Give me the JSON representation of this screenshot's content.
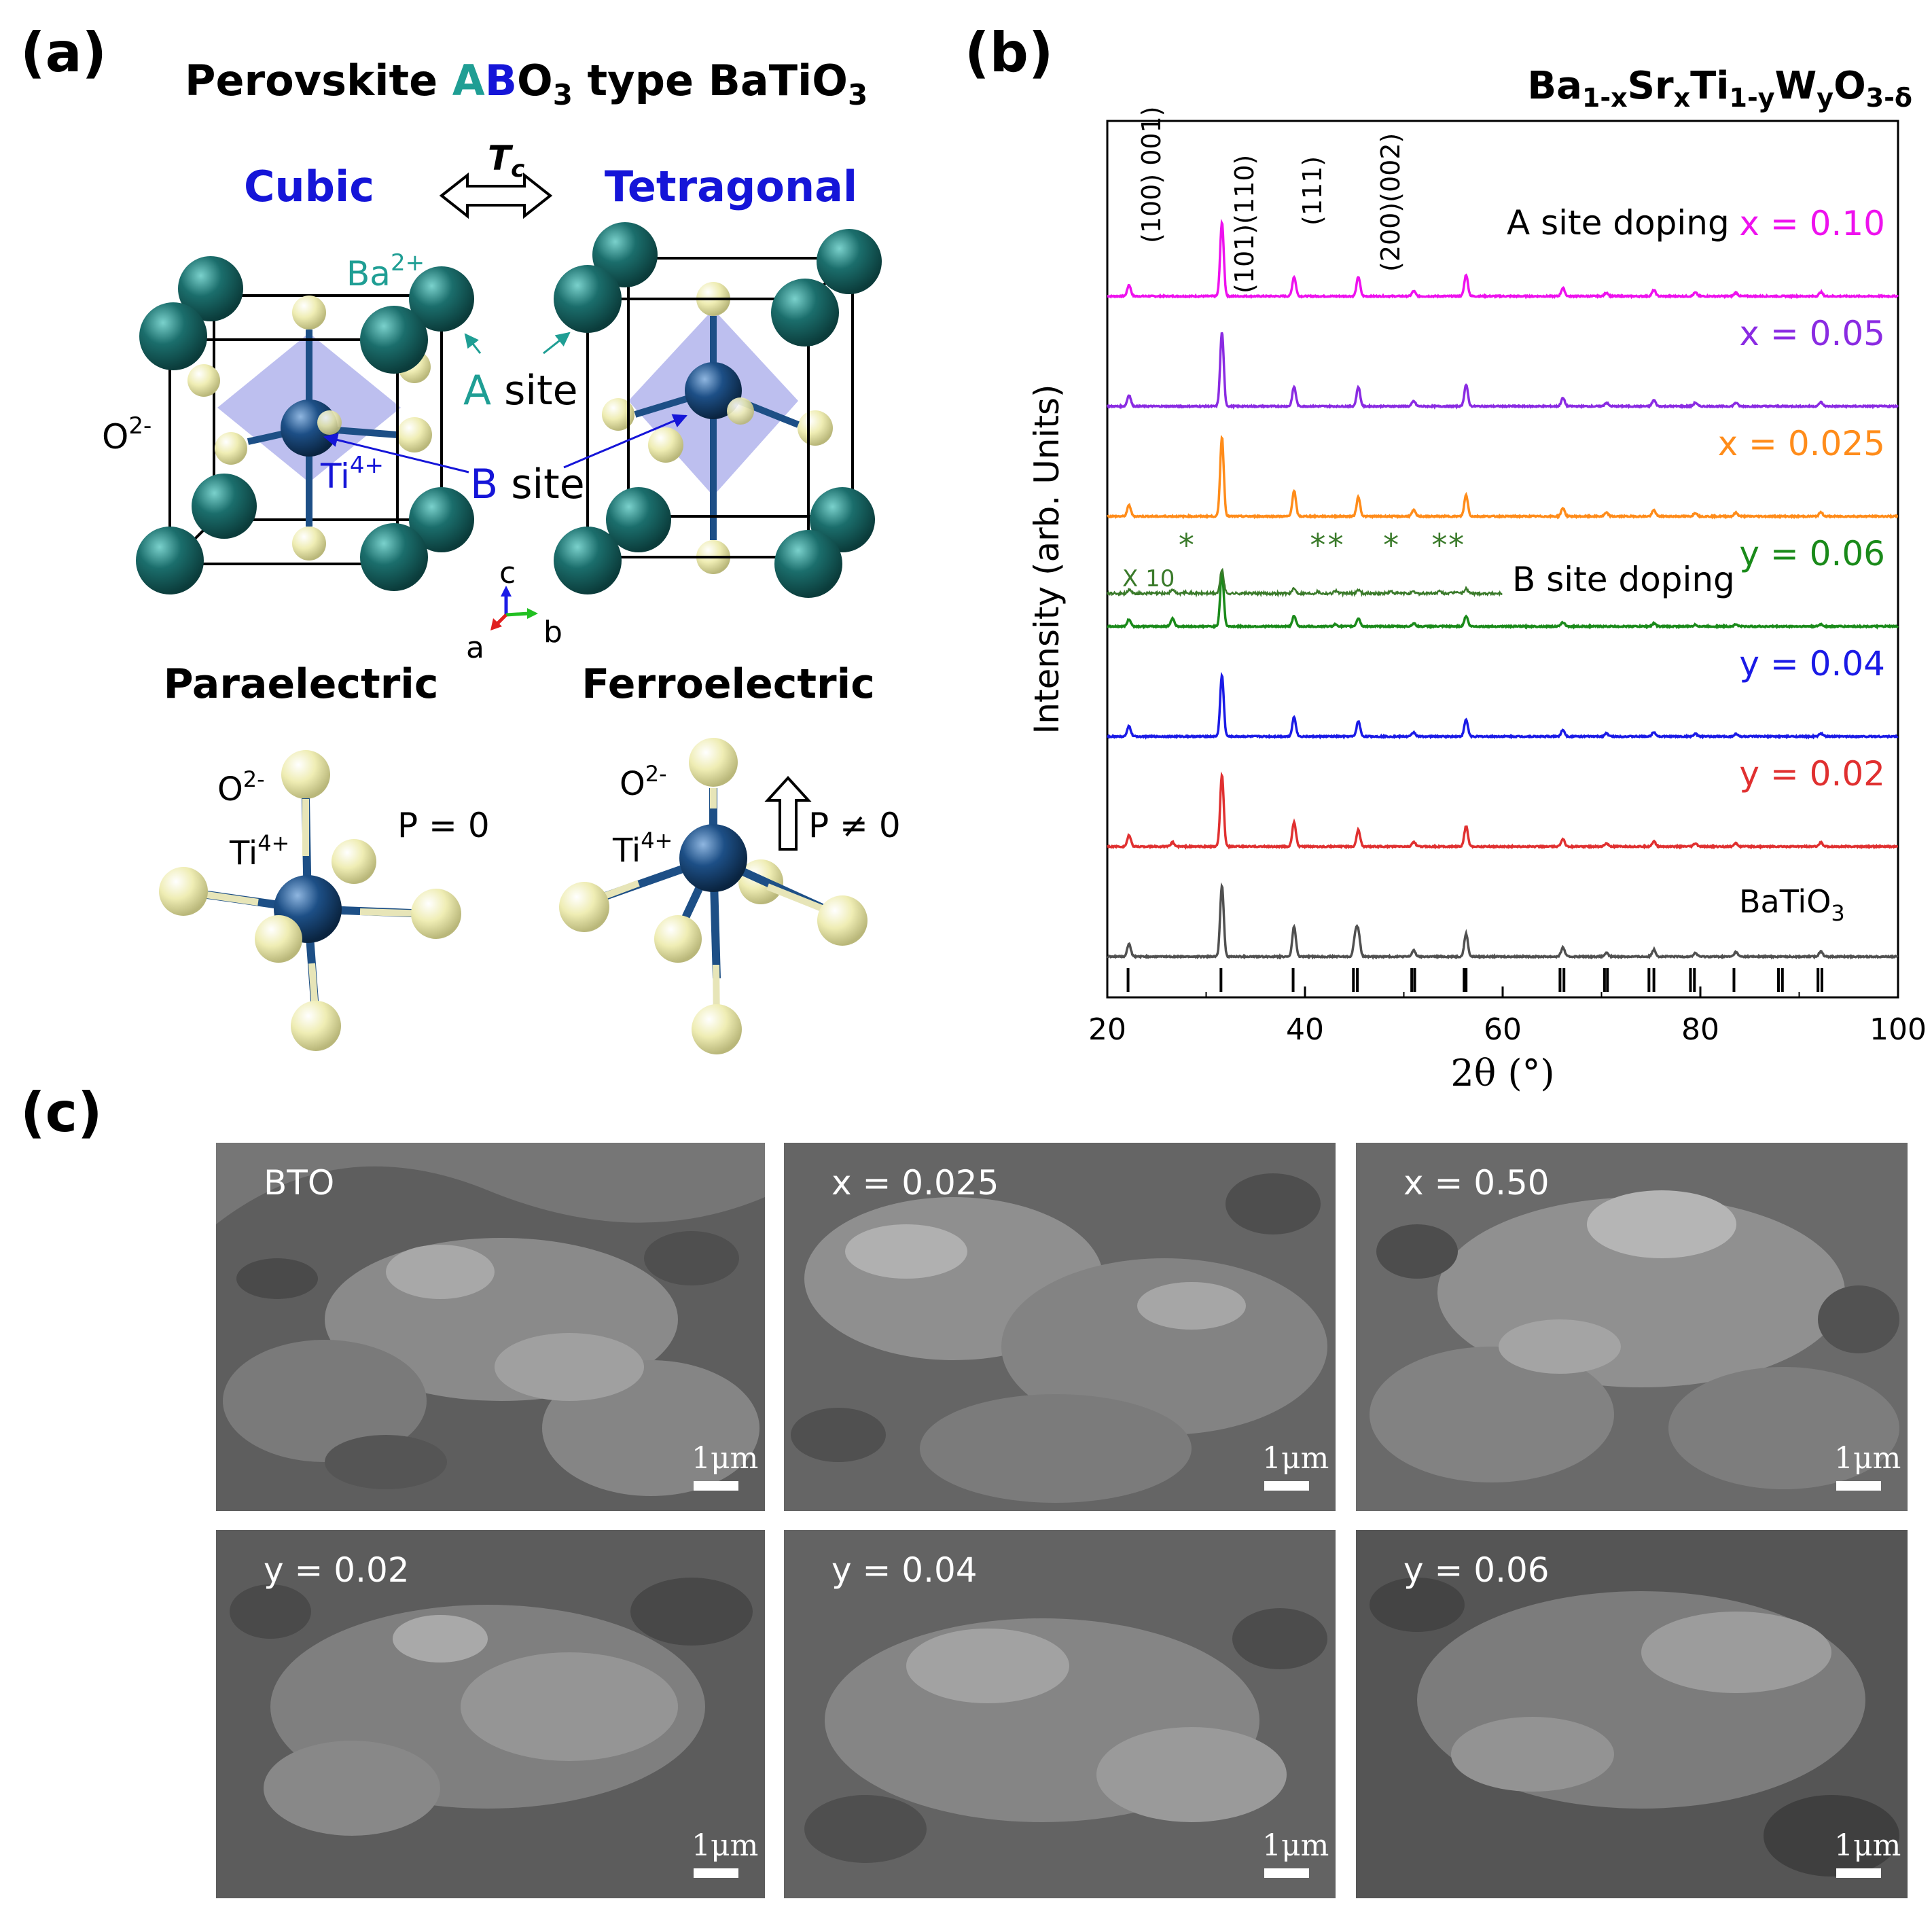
{
  "panel_a": {
    "label": "(a)",
    "title_prefix": "Perovskite ",
    "title_A": "A",
    "title_B": "B",
    "title_O": "O",
    "title_O_sub": "3",
    "title_suffix": " type BaTiO",
    "title_suffix_sub": "3",
    "phase_left": "Cubic",
    "phase_right": "Tetragonal",
    "transition_T": "T",
    "transition_T_sub": "c",
    "ion_ba": "Ba",
    "ion_ba_sup": "2+",
    "ion_o": "O",
    "ion_o_sup": "2-",
    "ion_ti": "Ti",
    "ion_ti_sup": "4+",
    "a_site_letter": "A",
    "a_site_word": " site",
    "b_site_letter": "B",
    "b_site_word": " site",
    "axis_c": "c",
    "axis_a": "a",
    "axis_b": "b",
    "state_left": "Paraelectric",
    "state_right": "Ferroelectric",
    "polarization_left": "P = 0",
    "polarization_right": "P ≠ 0",
    "colors": {
      "teal": "#1f9e94",
      "blue": "#1515d8",
      "ba_sphere": "#1b6e6c",
      "ti_sphere": "#1d4f86",
      "o_sphere": "#efedb4",
      "octahedron": "#a7a9ea"
    }
  },
  "panel_b": {
    "label": "(b)",
    "formula": {
      "base1": "Ba",
      "sub1": "1-x",
      "base2": "Sr",
      "sub2": "x",
      "base3": "Ti",
      "sub3": "1-y",
      "base4": "W",
      "sub4": "y",
      "base5": "O",
      "sub5": "3-δ"
    },
    "peak_labels": [
      "(100) 001)",
      "(101)(110)",
      "(111)",
      "(200)(002)"
    ],
    "a_site_text": "A site doping",
    "b_site_text": "B site doping",
    "x10_label": "X 10",
    "impurity_marker": "*",
    "batio3_label_base": "BaTiO",
    "batio3_label_sub": "3"
  },
  "chart_data": {
    "type": "line",
    "xlabel": "2θ (°)",
    "ylabel": "Intensity (arb. Units)",
    "xlim": [
      20,
      100
    ],
    "xticks": [
      20,
      40,
      60,
      80,
      100
    ],
    "yticks": [],
    "series": [
      {
        "name": "x = 0.10",
        "color": "#ee11ee",
        "offset": 6,
        "peaks": [
          [
            22.2,
            0.22
          ],
          [
            31.6,
            1.45
          ],
          [
            38.9,
            0.38
          ],
          [
            45.4,
            0.38
          ],
          [
            51.0,
            0.1
          ],
          [
            56.3,
            0.42
          ],
          [
            66.1,
            0.16
          ],
          [
            70.5,
            0.07
          ],
          [
            75.3,
            0.12
          ],
          [
            79.5,
            0.07
          ],
          [
            83.6,
            0.07
          ],
          [
            92.2,
            0.08
          ]
        ]
      },
      {
        "name": "x = 0.05",
        "color": "#8a2be2",
        "offset": 5,
        "peaks": [
          [
            22.2,
            0.22
          ],
          [
            31.6,
            1.45
          ],
          [
            38.9,
            0.38
          ],
          [
            45.4,
            0.38
          ],
          [
            51.0,
            0.1
          ],
          [
            56.3,
            0.42
          ],
          [
            66.1,
            0.16
          ],
          [
            70.5,
            0.07
          ],
          [
            75.3,
            0.12
          ],
          [
            79.5,
            0.07
          ],
          [
            83.6,
            0.07
          ],
          [
            92.2,
            0.08
          ]
        ]
      },
      {
        "name": "x = 0.025",
        "color": "#ff8c1a",
        "offset": 4,
        "peaks": [
          [
            22.2,
            0.22
          ],
          [
            31.6,
            1.55
          ],
          [
            38.9,
            0.5
          ],
          [
            45.4,
            0.38
          ],
          [
            51.0,
            0.12
          ],
          [
            56.3,
            0.42
          ],
          [
            66.1,
            0.16
          ],
          [
            70.5,
            0.07
          ],
          [
            75.3,
            0.12
          ],
          [
            79.5,
            0.07
          ],
          [
            83.6,
            0.07
          ],
          [
            92.2,
            0.08
          ]
        ]
      },
      {
        "name": "y = 0.06",
        "color": "#1a8a1a",
        "offset": 3,
        "peaks": [
          [
            22.2,
            0.14
          ],
          [
            26.6,
            0.16
          ],
          [
            31.6,
            1.05
          ],
          [
            38.9,
            0.2
          ],
          [
            43.1,
            0.04
          ],
          [
            45.4,
            0.16
          ],
          [
            51.0,
            0.06
          ],
          [
            56.3,
            0.2
          ],
          [
            66.1,
            0.08
          ],
          [
            75.3,
            0.06
          ],
          [
            79.5,
            0.03
          ],
          [
            83.6,
            0.04
          ],
          [
            92.2,
            0.04
          ]
        ]
      },
      {
        "name": "y = 0.04",
        "color": "#1a1ae6",
        "offset": 2,
        "peaks": [
          [
            22.2,
            0.2
          ],
          [
            31.6,
            1.2
          ],
          [
            38.9,
            0.38
          ],
          [
            45.4,
            0.3
          ],
          [
            51.0,
            0.08
          ],
          [
            56.3,
            0.33
          ],
          [
            66.1,
            0.13
          ],
          [
            70.5,
            0.06
          ],
          [
            75.3,
            0.09
          ],
          [
            79.5,
            0.05
          ],
          [
            83.6,
            0.05
          ],
          [
            92.2,
            0.06
          ]
        ]
      },
      {
        "name": "y = 0.02",
        "color": "#e03030",
        "offset": 1,
        "peaks": [
          [
            22.2,
            0.22
          ],
          [
            26.6,
            0.08
          ],
          [
            31.6,
            1.4
          ],
          [
            38.9,
            0.48
          ],
          [
            45.4,
            0.33
          ],
          [
            51.0,
            0.09
          ],
          [
            56.3,
            0.4
          ],
          [
            66.1,
            0.15
          ],
          [
            70.5,
            0.06
          ],
          [
            75.3,
            0.1
          ],
          [
            79.5,
            0.06
          ],
          [
            83.6,
            0.06
          ],
          [
            92.2,
            0.08
          ]
        ]
      },
      {
        "name": "BaTiO3",
        "color": "#505050",
        "offset": 0,
        "peaks": [
          [
            22.2,
            0.25
          ],
          [
            31.6,
            1.4
          ],
          [
            38.9,
            0.59
          ],
          [
            45.1,
            0.4
          ],
          [
            45.4,
            0.44
          ],
          [
            51.0,
            0.12
          ],
          [
            56.3,
            0.45
          ],
          [
            66.1,
            0.18
          ],
          [
            70.5,
            0.07
          ],
          [
            75.3,
            0.14
          ],
          [
            79.5,
            0.07
          ],
          [
            83.6,
            0.09
          ],
          [
            92.2,
            0.11
          ]
        ]
      }
    ],
    "inset_series": {
      "name": "y = 0.06 (X 10)",
      "color": "#3a7a2a",
      "offset": 3.3,
      "range": [
        20,
        60
      ],
      "impurity_positions": [
        28.0,
        41.3,
        43.1,
        48.7,
        53.6,
        55.3
      ]
    },
    "reference_ticks": [
      22.1,
      31.5,
      38.8,
      44.9,
      45.3,
      50.8,
      51.1,
      56.1,
      56.3,
      65.8,
      66.2,
      70.3,
      70.6,
      74.8,
      75.3,
      79.0,
      79.4,
      83.4,
      87.9,
      88.3,
      91.9,
      92.3
    ]
  },
  "panel_c": {
    "label": "(c)",
    "images": [
      {
        "label": "BTO",
        "scale": "1μm"
      },
      {
        "label": "x = 0.025",
        "scale": "1μm"
      },
      {
        "label": "x = 0.50",
        "scale": "1μm"
      },
      {
        "label": "y = 0.02",
        "scale": "1μm"
      },
      {
        "label": "y = 0.04",
        "scale": "1μm"
      },
      {
        "label": "y = 0.06",
        "scale": "1μm"
      }
    ]
  }
}
